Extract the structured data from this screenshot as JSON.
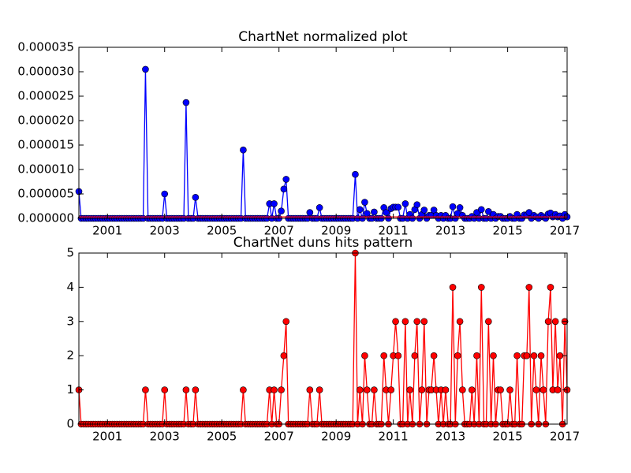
{
  "chart_data": [
    {
      "type": "line",
      "title": "ChartNet normalized plot",
      "x": [
        2000,
        2000.08,
        2000.17,
        2000.25,
        2000.33,
        2000.42,
        2000.5,
        2000.58,
        2000.67,
        2000.75,
        2000.83,
        2000.92,
        2001,
        2001.08,
        2001.17,
        2001.25,
        2001.33,
        2001.42,
        2001.5,
        2001.58,
        2001.67,
        2001.75,
        2001.83,
        2001.92,
        2002,
        2002.08,
        2002.17,
        2002.25,
        2002.33,
        2002.42,
        2002.5,
        2002.58,
        2002.67,
        2002.75,
        2002.83,
        2002.92,
        2003,
        2003.08,
        2003.17,
        2003.25,
        2003.33,
        2003.42,
        2003.5,
        2003.58,
        2003.67,
        2003.75,
        2003.83,
        2003.92,
        2004,
        2004.08,
        2004.17,
        2004.25,
        2004.33,
        2004.42,
        2004.5,
        2004.58,
        2004.67,
        2004.75,
        2004.83,
        2004.92,
        2005,
        2005.08,
        2005.17,
        2005.25,
        2005.33,
        2005.42,
        2005.5,
        2005.58,
        2005.67,
        2005.75,
        2005.83,
        2005.92,
        2006,
        2006.08,
        2006.17,
        2006.25,
        2006.33,
        2006.42,
        2006.5,
        2006.58,
        2006.67,
        2006.75,
        2006.83,
        2006.92,
        2007,
        2007.08,
        2007.17,
        2007.25,
        2007.33,
        2007.42,
        2007.5,
        2007.58,
        2007.67,
        2007.75,
        2007.83,
        2007.92,
        2008,
        2008.08,
        2008.17,
        2008.25,
        2008.33,
        2008.42,
        2008.5,
        2008.58,
        2008.67,
        2008.75,
        2008.83,
        2008.92,
        2009,
        2009.08,
        2009.17,
        2009.25,
        2009.33,
        2009.42,
        2009.5,
        2009.58,
        2009.67,
        2009.75,
        2009.83,
        2009.92,
        2010,
        2010.08,
        2010.17,
        2010.25,
        2010.33,
        2010.42,
        2010.5,
        2010.58,
        2010.67,
        2010.75,
        2010.83,
        2010.92,
        2011,
        2011.08,
        2011.17,
        2011.25,
        2011.33,
        2011.42,
        2011.5,
        2011.58,
        2011.67,
        2011.75,
        2011.83,
        2011.92,
        2012,
        2012.08,
        2012.17,
        2012.25,
        2012.33,
        2012.42,
        2012.5,
        2012.58,
        2012.67,
        2012.75,
        2012.83,
        2012.92,
        2013,
        2013.08,
        2013.17,
        2013.25,
        2013.33,
        2013.42,
        2013.5,
        2013.58,
        2013.67,
        2013.75,
        2013.83,
        2013.92,
        2014,
        2014.08,
        2014.17,
        2014.25,
        2014.33,
        2014.42,
        2014.5,
        2014.58,
        2014.67,
        2014.75,
        2014.83,
        2014.92,
        2015,
        2015.08,
        2015.17,
        2015.25,
        2015.33,
        2015.42,
        2015.5,
        2015.58,
        2015.67,
        2015.75,
        2015.83,
        2015.92,
        2016,
        2016.08,
        2016.17,
        2016.25,
        2016.33,
        2016.42,
        2016.5,
        2016.58,
        2016.67,
        2016.75,
        2016.83,
        2016.92,
        2017,
        2017.08
      ],
      "series": [
        {
          "color": "#0000ff",
          "marker": "o",
          "values": [
            5.5e-06,
            0,
            0,
            0,
            0,
            0,
            0,
            0,
            0,
            0,
            0,
            0,
            0,
            0,
            0,
            0,
            0,
            0,
            0,
            0,
            0,
            0,
            0,
            0,
            0,
            0,
            0,
            0,
            3.05e-05,
            0,
            0,
            0,
            0,
            0,
            0,
            0,
            5e-06,
            0,
            0,
            0,
            0,
            0,
            0,
            0,
            0,
            2.37e-05,
            0,
            0,
            0,
            4.3e-06,
            0,
            0,
            0,
            0,
            0,
            0,
            0,
            0,
            0,
            0,
            0,
            0,
            0,
            0,
            0,
            0,
            0,
            0,
            0,
            1.4e-05,
            0,
            0,
            0,
            0,
            0,
            0,
            0,
            0,
            0,
            0,
            3e-06,
            0,
            3e-06,
            0,
            0,
            1.5e-06,
            6e-06,
            8e-06,
            0,
            0,
            0,
            0,
            0,
            0,
            0,
            0,
            0,
            1.2e-06,
            0,
            0,
            0,
            2.2e-06,
            0,
            0,
            0,
            0,
            0,
            0,
            0,
            0,
            0,
            0,
            0,
            0,
            0,
            0,
            9e-06,
            0,
            1.8e-06,
            0,
            3.3e-06,
            1e-06,
            0,
            0,
            1.3e-06,
            0,
            0,
            0,
            2.2e-06,
            1.2e-06,
            0,
            2e-06,
            2.3e-06,
            2.3e-06,
            2.3e-06,
            0,
            0,
            3e-06,
            0,
            8e-07,
            0,
            1.8e-06,
            2.8e-06,
            0,
            8e-07,
            1.7e-06,
            0,
            6e-07,
            6e-07,
            1.7e-06,
            6e-07,
            0,
            6e-07,
            0,
            6e-07,
            0,
            0,
            2.4e-06,
            0,
            1e-06,
            2.2e-06,
            6e-07,
            0,
            0,
            0,
            4e-07,
            0,
            1.2e-06,
            0,
            1.8e-06,
            0,
            0,
            1.4e-06,
            0,
            8e-07,
            0,
            4e-07,
            4e-07,
            0,
            0,
            0,
            4e-07,
            0,
            0,
            8e-07,
            0,
            0,
            7e-07,
            7e-07,
            1.2e-06,
            0,
            6e-07,
            3e-07,
            0,
            6e-07,
            3e-07,
            0,
            9e-07,
            1.1e-06,
            3e-07,
            8e-07,
            3e-07,
            5e-07,
            0,
            8e-07,
            3e-07
          ]
        },
        {
          "color": "#ff0000",
          "marker": "none",
          "x": [
            2000,
            2017.08
          ],
          "values": [
            3e-07,
            3e-07
          ]
        }
      ],
      "xlim": [
        2000,
        2017.08
      ],
      "xticks": [
        2001,
        2003,
        2005,
        2007,
        2009,
        2011,
        2013,
        2015,
        2017
      ],
      "ylim": [
        0,
        3.5e-05
      ],
      "yticks": [
        {
          "value": 0,
          "label": "0.000000"
        },
        {
          "value": 5e-06,
          "label": "0.000005"
        },
        {
          "value": 1e-05,
          "label": "0.000010"
        },
        {
          "value": 1.5e-05,
          "label": "0.000015"
        },
        {
          "value": 2e-05,
          "label": "0.000020"
        },
        {
          "value": 2.5e-05,
          "label": "0.000025"
        },
        {
          "value": 3e-05,
          "label": "0.000030"
        },
        {
          "value": 3.5e-05,
          "label": "0.000035"
        }
      ],
      "grid": false
    },
    {
      "type": "line",
      "title": "ChartNet duns hits pattern",
      "x": [
        2000,
        2000.08,
        2000.17,
        2000.25,
        2000.33,
        2000.42,
        2000.5,
        2000.58,
        2000.67,
        2000.75,
        2000.83,
        2000.92,
        2001,
        2001.08,
        2001.17,
        2001.25,
        2001.33,
        2001.42,
        2001.5,
        2001.58,
        2001.67,
        2001.75,
        2001.83,
        2001.92,
        2002,
        2002.08,
        2002.17,
        2002.25,
        2002.33,
        2002.42,
        2002.5,
        2002.58,
        2002.67,
        2002.75,
        2002.83,
        2002.92,
        2003,
        2003.08,
        2003.17,
        2003.25,
        2003.33,
        2003.42,
        2003.5,
        2003.58,
        2003.67,
        2003.75,
        2003.83,
        2003.92,
        2004,
        2004.08,
        2004.17,
        2004.25,
        2004.33,
        2004.42,
        2004.5,
        2004.58,
        2004.67,
        2004.75,
        2004.83,
        2004.92,
        2005,
        2005.08,
        2005.17,
        2005.25,
        2005.33,
        2005.42,
        2005.5,
        2005.58,
        2005.67,
        2005.75,
        2005.83,
        2005.92,
        2006,
        2006.08,
        2006.17,
        2006.25,
        2006.33,
        2006.42,
        2006.5,
        2006.58,
        2006.67,
        2006.75,
        2006.83,
        2006.92,
        2007,
        2007.08,
        2007.17,
        2007.25,
        2007.33,
        2007.42,
        2007.5,
        2007.58,
        2007.67,
        2007.75,
        2007.83,
        2007.92,
        2008,
        2008.08,
        2008.17,
        2008.25,
        2008.33,
        2008.42,
        2008.5,
        2008.58,
        2008.67,
        2008.75,
        2008.83,
        2008.92,
        2009,
        2009.08,
        2009.17,
        2009.25,
        2009.33,
        2009.42,
        2009.5,
        2009.58,
        2009.67,
        2009.75,
        2009.83,
        2009.92,
        2010,
        2010.08,
        2010.17,
        2010.25,
        2010.33,
        2010.42,
        2010.5,
        2010.58,
        2010.67,
        2010.75,
        2010.83,
        2010.92,
        2011,
        2011.08,
        2011.17,
        2011.25,
        2011.33,
        2011.42,
        2011.5,
        2011.58,
        2011.67,
        2011.75,
        2011.83,
        2011.92,
        2012,
        2012.08,
        2012.17,
        2012.25,
        2012.33,
        2012.42,
        2012.5,
        2012.58,
        2012.67,
        2012.75,
        2012.83,
        2012.92,
        2013,
        2013.08,
        2013.17,
        2013.25,
        2013.33,
        2013.42,
        2013.5,
        2013.58,
        2013.67,
        2013.75,
        2013.83,
        2013.92,
        2014,
        2014.08,
        2014.17,
        2014.25,
        2014.33,
        2014.42,
        2014.5,
        2014.58,
        2014.67,
        2014.75,
        2014.83,
        2014.92,
        2015,
        2015.08,
        2015.17,
        2015.25,
        2015.33,
        2015.42,
        2015.5,
        2015.58,
        2015.67,
        2015.75,
        2015.83,
        2015.92,
        2016,
        2016.08,
        2016.17,
        2016.25,
        2016.33,
        2016.42,
        2016.5,
        2016.58,
        2016.67,
        2016.75,
        2016.83,
        2016.92,
        2017,
        2017.08
      ],
      "series": [
        {
          "color": "#ff0000",
          "marker": "o",
          "values": [
            1,
            0,
            0,
            0,
            0,
            0,
            0,
            0,
            0,
            0,
            0,
            0,
            0,
            0,
            0,
            0,
            0,
            0,
            0,
            0,
            0,
            0,
            0,
            0,
            0,
            0,
            0,
            0,
            1,
            0,
            0,
            0,
            0,
            0,
            0,
            0,
            1,
            0,
            0,
            0,
            0,
            0,
            0,
            0,
            0,
            1,
            0,
            0,
            0,
            1,
            0,
            0,
            0,
            0,
            0,
            0,
            0,
            0,
            0,
            0,
            0,
            0,
            0,
            0,
            0,
            0,
            0,
            0,
            0,
            1,
            0,
            0,
            0,
            0,
            0,
            0,
            0,
            0,
            0,
            0,
            1,
            0,
            1,
            0,
            0,
            1,
            2,
            3,
            0,
            0,
            0,
            0,
            0,
            0,
            0,
            0,
            0,
            1,
            0,
            0,
            0,
            1,
            0,
            0,
            0,
            0,
            0,
            0,
            0,
            0,
            0,
            0,
            0,
            0,
            0,
            0,
            5,
            0,
            1,
            0,
            2,
            1,
            0,
            0,
            1,
            0,
            0,
            0,
            2,
            1,
            0,
            1,
            2,
            3,
            2,
            0,
            0,
            3,
            0,
            1,
            0,
            2,
            3,
            0,
            1,
            3,
            0,
            1,
            1,
            2,
            1,
            0,
            1,
            0,
            1,
            0,
            0,
            4,
            0,
            2,
            3,
            1,
            0,
            0,
            0,
            1,
            0,
            2,
            0,
            4,
            0,
            0,
            3,
            0,
            2,
            0,
            1,
            1,
            0,
            0,
            0,
            1,
            0,
            0,
            2,
            0,
            0,
            2,
            2,
            4,
            0,
            2,
            1,
            0,
            2,
            1,
            0,
            3,
            4,
            1,
            3,
            1,
            2,
            0,
            3,
            1
          ]
        }
      ],
      "xlim": [
        2000,
        2017.08
      ],
      "xticks": [
        2001,
        2003,
        2005,
        2007,
        2009,
        2011,
        2013,
        2015,
        2017
      ],
      "ylim": [
        0,
        5
      ],
      "yticks": [
        0,
        1,
        2,
        3,
        4,
        5
      ],
      "grid": false
    }
  ]
}
